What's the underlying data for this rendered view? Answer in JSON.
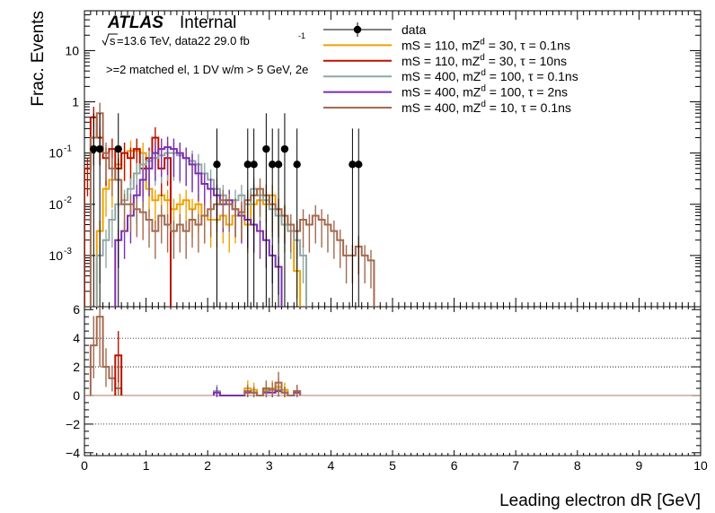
{
  "chart_data": {
    "type": "line",
    "annotations": {
      "atlas": "ATLAS",
      "status": "Internal",
      "sqrt_s": "s",
      "energy_lumi": "=13.6 TeV, data22 29.0 fb",
      "lumi_exp": "-1",
      "selection": ">=2 matched el, 1 DV w/m > 5 GeV, 2e"
    },
    "xlabel": "Leading electron dR [GeV]",
    "ylabel": "Frac. Events",
    "xlim": [
      0,
      10
    ],
    "xticks": [
      "0",
      "1",
      "2",
      "3",
      "4",
      "5",
      "6",
      "7",
      "8",
      "9",
      "10"
    ],
    "upper": {
      "yscale": "log",
      "ylim": [
        0.0001,
        60
      ],
      "yticks": [
        {
          "value": 0.001,
          "base": "10",
          "exp": "-3"
        },
        {
          "value": 0.01,
          "base": "10",
          "exp": "-2"
        },
        {
          "value": 0.1,
          "base": "10",
          "exp": "-1"
        },
        {
          "value": 1,
          "base": "1",
          "exp": ""
        },
        {
          "value": 10,
          "base": "10",
          "exp": ""
        }
      ],
      "bin_width": 0.1,
      "legend_position": "top-right",
      "legend": [
        {
          "id": "data",
          "parts": [
            "data"
          ]
        },
        {
          "id": "s1",
          "parts": [
            "mS = 110, mZ",
            "d",
            " = 30, τ = 0.1ns"
          ]
        },
        {
          "id": "s2",
          "parts": [
            "mS = 110, mZ",
            "d",
            " = 30, τ = 10ns"
          ]
        },
        {
          "id": "s3",
          "parts": [
            "mS = 400, mZ",
            "d",
            " = 100, τ = 0.1ns"
          ]
        },
        {
          "id": "s4",
          "parts": [
            "mS = 400, mZ",
            "d",
            " = 100, τ = 2ns"
          ]
        },
        {
          "id": "s5",
          "parts": [
            "mS = 400, mZ",
            "d",
            " = 10, τ = 0.1ns"
          ]
        }
      ],
      "data_points": [
        {
          "x": 0.15,
          "y": 0.12
        },
        {
          "x": 0.25,
          "y": 0.12
        },
        {
          "x": 0.55,
          "y": 0.12
        },
        {
          "x": 2.15,
          "y": 0.06
        },
        {
          "x": 2.65,
          "y": 0.06
        },
        {
          "x": 2.75,
          "y": 0.06
        },
        {
          "x": 2.95,
          "y": 0.12
        },
        {
          "x": 3.05,
          "y": 0.06
        },
        {
          "x": 3.15,
          "y": 0.06
        },
        {
          "x": 3.25,
          "y": 0.12
        },
        {
          "x": 3.45,
          "y": 0.06
        },
        {
          "x": 4.35,
          "y": 0.06
        },
        {
          "x": 4.45,
          "y": 0.06
        }
      ],
      "series": [
        {
          "id": "s1",
          "color": "#f0a000",
          "x_start": 0.2,
          "values": [
            0.003,
            0.02,
            0.03,
            0.06,
            0.1,
            0.11,
            0.11,
            0.1,
            0.02,
            0.012,
            0.015,
            0.012,
            0.008,
            0.01,
            0.012,
            0.008,
            0.01,
            0.006,
            0.005,
            0.005,
            0.006,
            0.004,
            0.006,
            0.007,
            0.004,
            0.01,
            0.012,
            0.01,
            0.015,
            0.008,
            0.006,
            0.003,
            0.0005
          ]
        },
        {
          "id": "s2",
          "color": "#b81400",
          "x_start": 0.0,
          "values": [
            0.05,
            0.5,
            0.2,
            0.08,
            0.12,
            0.05,
            0.1,
            0.08,
            0.12,
            0.05,
            0.08,
            0.2,
            0.05,
            0.08
          ]
        },
        {
          "id": "s3",
          "color": "#90a8a4",
          "x_start": 0.2,
          "values": [
            0.001,
            0.002,
            0.005,
            0.01,
            0.012,
            0.02,
            0.04,
            0.06,
            0.07,
            0.08,
            0.09,
            0.1,
            0.1,
            0.09,
            0.08,
            0.07,
            0.06,
            0.04,
            0.03,
            0.02,
            0.015,
            0.01,
            0.012,
            0.015,
            0.01,
            0.02,
            0.015,
            0.012,
            0.008,
            0.006,
            0.004,
            0.003,
            0.002,
            0.001
          ]
        },
        {
          "id": "s4",
          "color": "#7a2fb0",
          "x_start": 0.5,
          "values": [
            0.002,
            0.003,
            0.006,
            0.015,
            0.03,
            0.05,
            0.1,
            0.12,
            0.13,
            0.12,
            0.1,
            0.08,
            0.06,
            0.04,
            0.025,
            0.02,
            0.015,
            0.01,
            0.012,
            0.008,
            0.006,
            0.005,
            0.004,
            0.003,
            0.002,
            0.001,
            0.0006
          ]
        },
        {
          "id": "s5",
          "color": "#a36a4f",
          "x_start": 0.1,
          "values": [
            0.2,
            0.6,
            0.1,
            0.05,
            0.03,
            0.01,
            0.01,
            0.008,
            0.007,
            0.005,
            0.003,
            0.006,
            0.004,
            0.003,
            0.004,
            0.003,
            0.005,
            0.004,
            0.006,
            0.008,
            0.01,
            0.012,
            0.01,
            0.008,
            0.007,
            0.012,
            0.015,
            0.02,
            0.015,
            0.01,
            0.008,
            0.006,
            0.004,
            0.003,
            0.005,
            0.004,
            0.006,
            0.005,
            0.004,
            0.003,
            0.002,
            0.001,
            0.001,
            0.0015,
            0.001,
            0.0008
          ]
        }
      ]
    },
    "lower": {
      "ylim": [
        -4.2,
        6.2
      ],
      "yticks": [
        -4,
        -2,
        0,
        2,
        4,
        6
      ],
      "gridlines": [
        -2,
        0,
        2,
        4
      ],
      "ratio_series": [
        {
          "id": "r5",
          "color": "#a36a4f",
          "x_start": 0.1,
          "values": [
            3.5,
            5.5,
            2.0,
            1.2,
            0.5
          ]
        },
        {
          "id": "r2",
          "color": "#b81400",
          "x_start": 0.5,
          "values": [
            2.8
          ]
        },
        {
          "id": "r3",
          "color": "#90a8a4",
          "x_start": 2.1,
          "values": [
            0.3,
            0,
            0,
            0,
            0,
            0.3,
            0.2,
            0,
            0.3,
            0.2,
            0.4,
            0.2,
            0,
            0.3
          ]
        },
        {
          "id": "r4",
          "color": "#7a2fb0",
          "x_start": 2.1,
          "values": [
            0.2,
            0,
            0,
            0,
            0,
            0.2,
            0.2,
            0,
            0.2,
            0.2,
            0.3,
            0.2,
            0,
            0.2
          ]
        },
        {
          "id": "r1",
          "color": "#f0a000",
          "x_start": 2.6,
          "values": [
            0.5,
            0.4,
            0,
            0.4,
            0.5,
            0.6,
            0.4
          ]
        },
        {
          "id": "r6",
          "color": "#a36a4f",
          "x_start": 2.6,
          "values": [
            0.3,
            0.2,
            0,
            0.5,
            0.4,
            0.9,
            0.2,
            0,
            0.3
          ]
        }
      ]
    }
  }
}
